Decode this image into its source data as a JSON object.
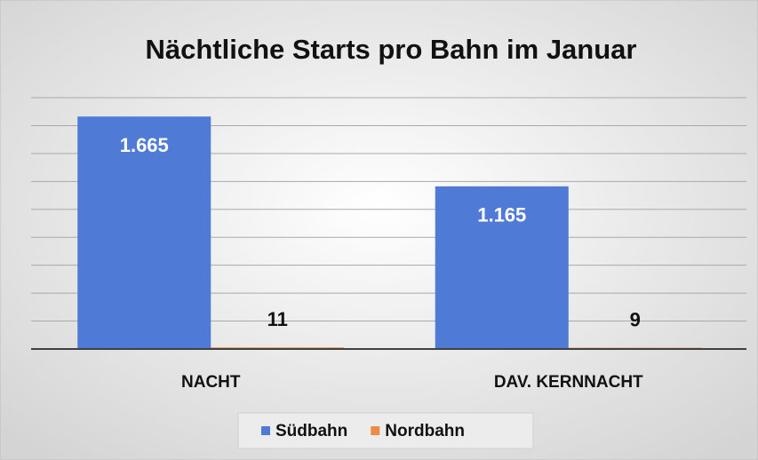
{
  "chart_data": {
    "type": "bar",
    "title": "Nächtliche Starts pro Bahn im Januar",
    "categories": [
      "NACHT",
      "DAV. KERNNACHT"
    ],
    "series": [
      {
        "name": "Südbahn",
        "color": "#4f7bd6",
        "values": [
          1665,
          1165
        ],
        "value_labels": [
          "1.665",
          "1.165"
        ]
      },
      {
        "name": "Nordbahn",
        "color": "#ef8a43",
        "values": [
          11,
          9
        ],
        "value_labels": [
          "11",
          "9"
        ]
      }
    ],
    "ylim": [
      0,
      1800
    ],
    "yticks": [
      0,
      200,
      400,
      600,
      800,
      1000,
      1200,
      1400,
      1600,
      1800
    ],
    "ytick_labels": false,
    "grid": true,
    "legend": "bottom"
  }
}
